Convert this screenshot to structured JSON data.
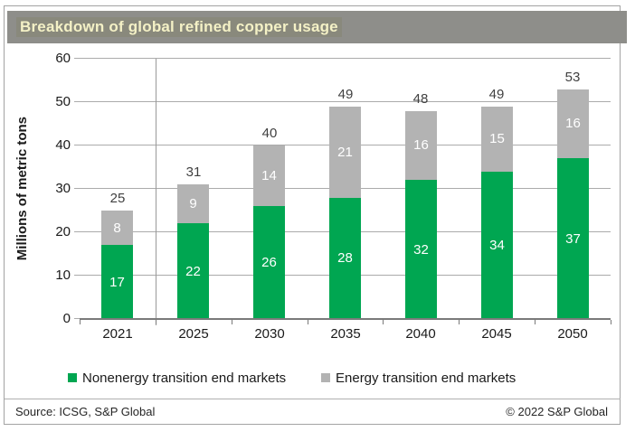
{
  "title": "Breakdown of global refined copper usage",
  "chart_data": {
    "type": "bar",
    "stacked": true,
    "title": "Breakdown of global refined copper usage",
    "categories": [
      "2021",
      "2025",
      "2030",
      "2035",
      "2040",
      "2045",
      "2050"
    ],
    "series": [
      {
        "name": "Nonenergy transition end markets",
        "color": "#00A651",
        "values": [
          17,
          22,
          26,
          28,
          32,
          34,
          37
        ]
      },
      {
        "name": "Energy transition end markets",
        "color": "#B3B3B3",
        "values": [
          8,
          9,
          14,
          21,
          16,
          15,
          16
        ]
      }
    ],
    "totals": [
      25,
      31,
      40,
      49,
      48,
      49,
      53
    ],
    "xlabel": "",
    "ylabel": "Millions of metric tons",
    "ylim": [
      0,
      60
    ],
    "yticks": [
      0,
      10,
      20,
      30,
      40,
      50,
      60
    ],
    "grid": true,
    "legend_position": "bottom",
    "divider_after_category": "2021"
  },
  "legend": {
    "item1": "Nonenergy transition end markets",
    "item2": "Energy transition end markets"
  },
  "footer": {
    "source": "Source: ICSG, S&P Global",
    "copyright": "© 2022 S&P Global"
  },
  "colors": {
    "title_bar_bg": "#8e8e8a",
    "title_text": "#f4f1c6",
    "green": "#00A651",
    "gray": "#B3B3B3",
    "gridline": "#ababab",
    "axis": "#7a7a7a"
  }
}
